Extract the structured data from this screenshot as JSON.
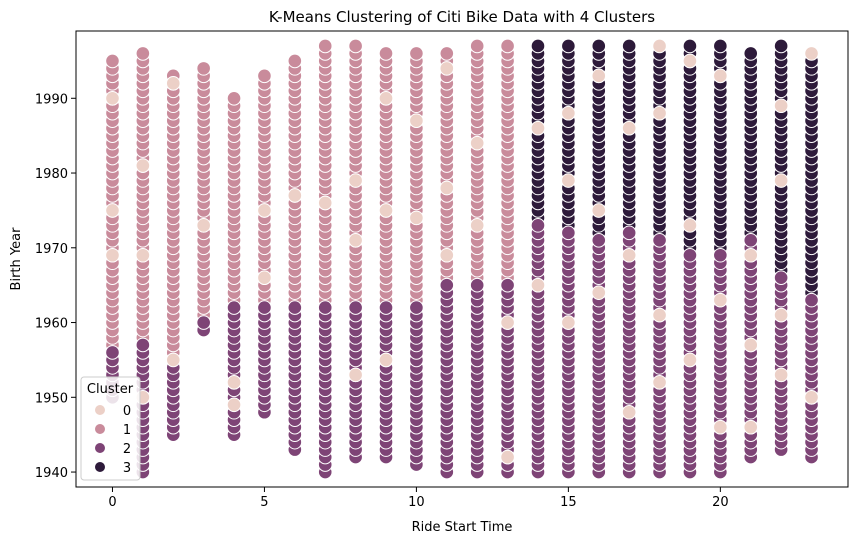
{
  "chart_data": {
    "type": "scatter",
    "title": "K-Means Clustering of Citi Bike Data with 4 Clusters",
    "xlabel": "Ride Start Time",
    "ylabel": "Birth Year",
    "xlim": [
      -1.2,
      24.2
    ],
    "ylim": [
      1938,
      1999
    ],
    "xticks": [
      0,
      5,
      10,
      15,
      20
    ],
    "yticks": [
      1940,
      1950,
      1960,
      1970,
      1980,
      1990
    ],
    "grid": false,
    "legend": {
      "title": "Cluster",
      "placement": "lower-left",
      "entries": [
        "0",
        "1",
        "2",
        "3"
      ]
    },
    "cluster_colors": [
      "#ecd0c7",
      "#c98b9b",
      "#7e4476",
      "#2d1a3a"
    ],
    "columns": [
      {
        "x": 0,
        "segments": [
          [
            1,
            1957,
            1995
          ],
          [
            2,
            1950,
            1956
          ]
        ],
        "sparse0": [
          1969,
          1990,
          1975
        ]
      },
      {
        "x": 1,
        "segments": [
          [
            1,
            1958,
            1996
          ],
          [
            2,
            1940,
            1957
          ]
        ],
        "sparse0": [
          1969,
          1950,
          1981
        ]
      },
      {
        "x": 2,
        "segments": [
          [
            1,
            1955,
            1993
          ],
          [
            2,
            1945,
            1954
          ]
        ],
        "sparse0": [
          1955,
          1992
        ]
      },
      {
        "x": 3,
        "segments": [
          [
            1,
            1961,
            1994
          ],
          [
            2,
            1959,
            1960
          ]
        ],
        "sparse0": [
          1973
        ]
      },
      {
        "x": 4,
        "segments": [
          [
            1,
            1963,
            1990
          ],
          [
            2,
            1945,
            1962
          ]
        ],
        "sparse0": [
          1952,
          1949
        ]
      },
      {
        "x": 5,
        "segments": [
          [
            1,
            1963,
            1993
          ],
          [
            2,
            1948,
            1962
          ]
        ],
        "sparse0": [
          1975,
          1966
        ]
      },
      {
        "x": 6,
        "segments": [
          [
            1,
            1963,
            1995
          ],
          [
            2,
            1943,
            1962
          ]
        ],
        "sparse0": [
          1977
        ]
      },
      {
        "x": 7,
        "segments": [
          [
            1,
            1963,
            1997
          ],
          [
            2,
            1940,
            1962
          ]
        ],
        "sparse0": [
          1976
        ]
      },
      {
        "x": 8,
        "segments": [
          [
            1,
            1963,
            1997
          ],
          [
            2,
            1942,
            1962
          ]
        ],
        "sparse0": [
          1971,
          1979,
          1953
        ]
      },
      {
        "x": 9,
        "segments": [
          [
            1,
            1963,
            1996
          ],
          [
            2,
            1942,
            1962
          ]
        ],
        "sparse0": [
          1990,
          1975,
          1955
        ]
      },
      {
        "x": 10,
        "segments": [
          [
            1,
            1963,
            1996
          ],
          [
            2,
            1941,
            1962
          ]
        ],
        "sparse0": [
          1987,
          1974
        ]
      },
      {
        "x": 11,
        "segments": [
          [
            1,
            1966,
            1996
          ],
          [
            2,
            1940,
            1965
          ]
        ],
        "sparse0": [
          1994,
          1978,
          1969
        ]
      },
      {
        "x": 12,
        "segments": [
          [
            1,
            1966,
            1997
          ],
          [
            2,
            1940,
            1965
          ]
        ],
        "sparse0": [
          1973,
          1984
        ]
      },
      {
        "x": 13,
        "segments": [
          [
            1,
            1966,
            1997
          ],
          [
            2,
            1940,
            1965
          ]
        ],
        "sparse0": [
          1960,
          1942
        ]
      },
      {
        "x": 14,
        "segments": [
          [
            3,
            1974,
            1997
          ],
          [
            2,
            1940,
            1973
          ]
        ],
        "sparse0": [
          1986,
          1965
        ]
      },
      {
        "x": 15,
        "segments": [
          [
            3,
            1973,
            1997
          ],
          [
            2,
            1940,
            1972
          ]
        ],
        "sparse0": [
          1988,
          1979,
          1960
        ]
      },
      {
        "x": 16,
        "segments": [
          [
            3,
            1972,
            1997
          ],
          [
            2,
            1940,
            1971
          ]
        ],
        "sparse0": [
          1993,
          1975,
          1964
        ]
      },
      {
        "x": 17,
        "segments": [
          [
            3,
            1973,
            1997
          ],
          [
            2,
            1940,
            1972
          ]
        ],
        "sparse0": [
          1986,
          1969,
          1948
        ]
      },
      {
        "x": 18,
        "segments": [
          [
            3,
            1972,
            1996
          ],
          [
            2,
            1940,
            1971
          ]
        ],
        "sparse0": [
          1997,
          1988,
          1961,
          1952
        ]
      },
      {
        "x": 19,
        "segments": [
          [
            3,
            1970,
            1997
          ],
          [
            2,
            1940,
            1969
          ]
        ],
        "sparse0": [
          1995,
          1973,
          1955
        ]
      },
      {
        "x": 20,
        "segments": [
          [
            3,
            1970,
            1997
          ],
          [
            2,
            1940,
            1969
          ]
        ],
        "sparse0": [
          1993,
          1963,
          1946
        ]
      },
      {
        "x": 21,
        "segments": [
          [
            3,
            1972,
            1996
          ],
          [
            2,
            1942,
            1971
          ]
        ],
        "sparse0": [
          1969,
          1957,
          1946
        ]
      },
      {
        "x": 22,
        "segments": [
          [
            3,
            1967,
            1997
          ],
          [
            2,
            1943,
            1966
          ]
        ],
        "sparse0": [
          1989,
          1979,
          1961,
          1953
        ]
      },
      {
        "x": 23,
        "segments": [
          [
            3,
            1964,
            1995
          ],
          [
            2,
            1942,
            1963
          ]
        ],
        "sparse0": [
          1996,
          1950
        ]
      }
    ]
  }
}
